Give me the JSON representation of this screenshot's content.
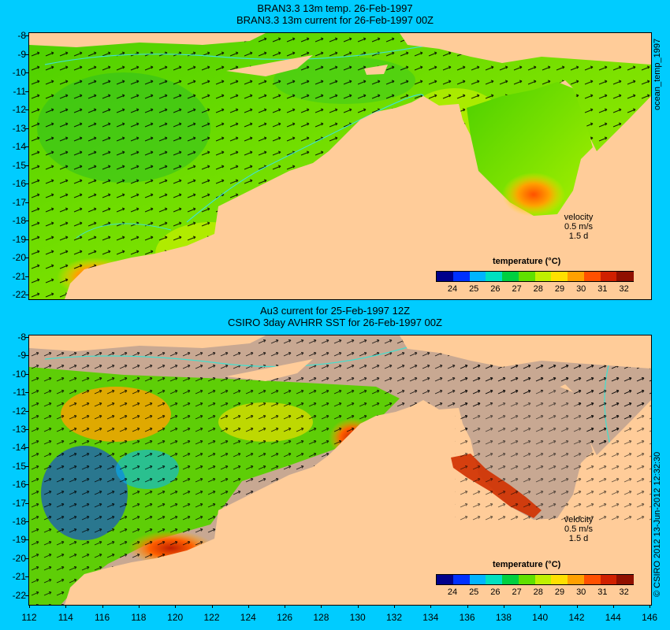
{
  "panel1": {
    "title_line1": "BRAN3.3 13m temp. 26-Feb-1997",
    "title_line2": "BRAN3.3 13m current for 26-Feb-1997 00Z",
    "velocity_label": "velocity",
    "velocity_speed": "0.5 m/s",
    "velocity_time": "1.5 d",
    "cbar_title": "temperature (°C)"
  },
  "panel2": {
    "title_line1": "Au3 current for 25-Feb-1997 12Z",
    "title_line2": "CSIRO 3day AVHRR SST for 26-Feb-1997 00Z",
    "velocity_label": "velocity",
    "velocity_speed": "0.5 m/s",
    "velocity_time": "1.5 d",
    "cbar_title": "temperature (°C)"
  },
  "side_label_top": "ocean_temp_1997",
  "side_label_bottom": "© CSIRO 2012  13-Jun-2012 12:32:30",
  "y_ticks": [
    "-8",
    "-9",
    "-10",
    "-11",
    "-12",
    "-13",
    "-14",
    "-15",
    "-16",
    "-17",
    "-18",
    "-19",
    "-20",
    "-21",
    "-22"
  ],
  "x_ticks": [
    "112",
    "114",
    "116",
    "118",
    "120",
    "122",
    "124",
    "126",
    "128",
    "130",
    "132",
    "134",
    "136",
    "138",
    "140",
    "142",
    "144",
    "146"
  ],
  "colorbar_ticks": [
    "24",
    "25",
    "26",
    "27",
    "28",
    "29",
    "30",
    "31",
    "32"
  ],
  "colorbar_colors": [
    "#00008b",
    "#0030ff",
    "#00b4ff",
    "#00e0c0",
    "#00d040",
    "#60e000",
    "#c0f000",
    "#ffe000",
    "#ffa000",
    "#ff5000",
    "#d02000",
    "#901000"
  ],
  "colors": {
    "land": "#ffcc99",
    "no_data": "#c8a892",
    "background": "#00ccff",
    "contour": "#40e0d0"
  }
}
